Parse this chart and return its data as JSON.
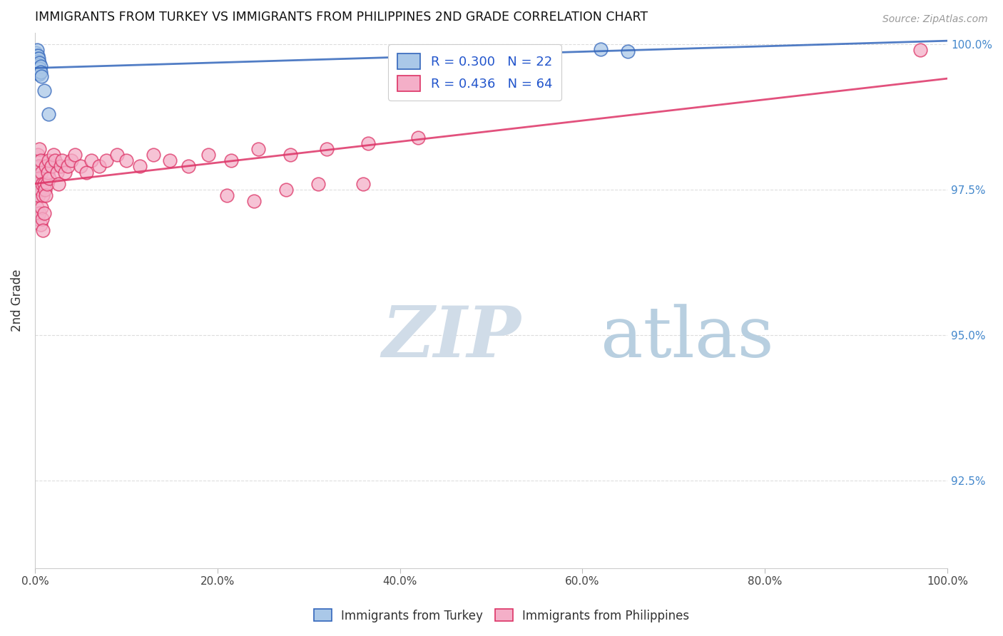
{
  "title": "IMMIGRANTS FROM TURKEY VS IMMIGRANTS FROM PHILIPPINES 2ND GRADE CORRELATION CHART",
  "source": "Source: ZipAtlas.com",
  "ylabel": "2nd Grade",
  "R_turkey": 0.3,
  "N_turkey": 22,
  "R_philippines": 0.436,
  "N_philippines": 64,
  "color_turkey": "#aac8e8",
  "color_philippines": "#f4afc8",
  "line_color_turkey": "#3366bb",
  "line_color_philippines": "#dd3366",
  "turkey_x": [
    0.001,
    0.001,
    0.002,
    0.002,
    0.002,
    0.003,
    0.003,
    0.003,
    0.003,
    0.004,
    0.004,
    0.004,
    0.005,
    0.005,
    0.005,
    0.006,
    0.006,
    0.007,
    0.01,
    0.015,
    0.62,
    0.65
  ],
  "turkey_y": [
    0.9985,
    0.998,
    0.999,
    0.9975,
    0.9965,
    0.998,
    0.997,
    0.996,
    0.995,
    0.9975,
    0.9965,
    0.9955,
    0.9968,
    0.9958,
    0.9948,
    0.9962,
    0.9952,
    0.9945,
    0.992,
    0.988,
    0.9992,
    0.9988
  ],
  "philippines_x": [
    0.001,
    0.002,
    0.002,
    0.003,
    0.003,
    0.003,
    0.004,
    0.004,
    0.005,
    0.005,
    0.005,
    0.006,
    0.006,
    0.006,
    0.007,
    0.007,
    0.008,
    0.008,
    0.009,
    0.009,
    0.01,
    0.01,
    0.011,
    0.012,
    0.012,
    0.013,
    0.014,
    0.015,
    0.016,
    0.018,
    0.02,
    0.022,
    0.024,
    0.026,
    0.028,
    0.03,
    0.033,
    0.036,
    0.04,
    0.044,
    0.05,
    0.056,
    0.062,
    0.07,
    0.078,
    0.09,
    0.1,
    0.115,
    0.13,
    0.148,
    0.168,
    0.19,
    0.215,
    0.245,
    0.28,
    0.32,
    0.365,
    0.42,
    0.275,
    0.31,
    0.36,
    0.21,
    0.24,
    0.97
  ],
  "philippines_y": [
    0.974,
    0.978,
    0.972,
    0.981,
    0.976,
    0.97,
    0.979,
    0.974,
    0.982,
    0.977,
    0.971,
    0.98,
    0.975,
    0.969,
    0.978,
    0.972,
    0.976,
    0.97,
    0.974,
    0.968,
    0.976,
    0.971,
    0.975,
    0.979,
    0.974,
    0.976,
    0.978,
    0.98,
    0.977,
    0.979,
    0.981,
    0.98,
    0.978,
    0.976,
    0.979,
    0.98,
    0.978,
    0.979,
    0.98,
    0.981,
    0.979,
    0.978,
    0.98,
    0.979,
    0.98,
    0.981,
    0.98,
    0.979,
    0.981,
    0.98,
    0.979,
    0.981,
    0.98,
    0.982,
    0.981,
    0.982,
    0.983,
    0.984,
    0.975,
    0.976,
    0.976,
    0.974,
    0.973,
    0.999
  ],
  "turkey_line": [
    0.995,
    0.998
  ],
  "philippines_line": [
    0.97,
    0.998
  ],
  "xlim": [
    0.0,
    1.0
  ],
  "ylim": [
    0.91,
    1.002
  ],
  "xticks": [
    0.0,
    0.2,
    0.4,
    0.6,
    0.8,
    1.0
  ],
  "xticklabels": [
    "0.0%",
    "20.0%",
    "40.0%",
    "60.0%",
    "80.0%",
    "100.0%"
  ],
  "yticks": [
    0.925,
    0.95,
    0.975,
    1.0
  ],
  "right_tick_labels": [
    "92.5%",
    "95.0%",
    "97.5%",
    "100.0%"
  ],
  "background_color": "#ffffff",
  "grid_color": "#dddddd",
  "watermark_zip_color": "#d8e8f4",
  "watermark_atlas_color": "#c0d8f0"
}
